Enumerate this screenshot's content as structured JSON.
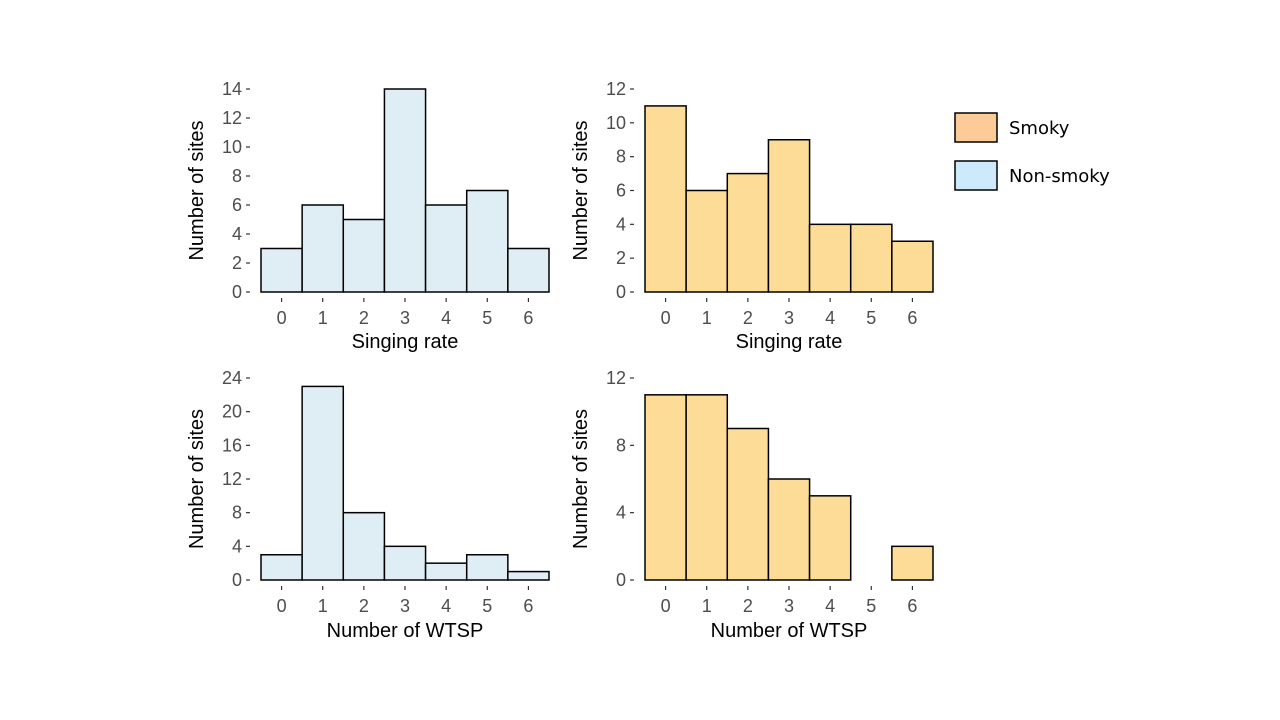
{
  "legend": {
    "items": [
      {
        "label": "Smoky",
        "color": "#fdcb98"
      },
      {
        "label": "Non-smoky",
        "color": "#cdeafa"
      }
    ]
  },
  "chart_data": [
    {
      "type": "bar",
      "group": "Non-smoky",
      "fill": "#deeef4",
      "categories": [
        "0",
        "1",
        "2",
        "3",
        "4",
        "5",
        "6"
      ],
      "values": [
        3,
        6,
        5,
        14,
        6,
        7,
        3
      ],
      "xlabel": "Singing rate",
      "ylabel": "Number of sites",
      "ylim": [
        0,
        14
      ],
      "yticks": [
        0,
        2,
        4,
        6,
        8,
        10,
        12,
        14
      ],
      "grid": false
    },
    {
      "type": "bar",
      "group": "Smoky",
      "fill": "#fddc98",
      "categories": [
        "0",
        "1",
        "2",
        "3",
        "4",
        "5",
        "6"
      ],
      "values": [
        11,
        6,
        7,
        9,
        4,
        4,
        3
      ],
      "xlabel": "Singing rate",
      "ylabel": "Number of sites",
      "ylim": [
        0,
        12
      ],
      "yticks": [
        0,
        2,
        4,
        6,
        8,
        10,
        12
      ],
      "grid": false
    },
    {
      "type": "bar",
      "group": "Non-smoky",
      "fill": "#deeef4",
      "categories": [
        "0",
        "1",
        "2",
        "3",
        "4",
        "5",
        "6"
      ],
      "values": [
        3,
        23,
        8,
        4,
        2,
        3,
        1
      ],
      "xlabel": "Number of WTSP",
      "ylabel": "Number of sites",
      "ylim": [
        0,
        24
      ],
      "yticks": [
        0,
        4,
        8,
        12,
        16,
        20,
        24
      ],
      "grid": false
    },
    {
      "type": "bar",
      "group": "Smoky",
      "fill": "#fddc98",
      "categories": [
        "0",
        "1",
        "2",
        "3",
        "4",
        "5",
        "6"
      ],
      "values": [
        11,
        11,
        9,
        6,
        5,
        0,
        2
      ],
      "xlabel": "Number of WTSP",
      "ylabel": "Number of sites",
      "ylim": [
        0,
        12
      ],
      "yticks": [
        0,
        4,
        8,
        12
      ],
      "grid": false
    }
  ]
}
